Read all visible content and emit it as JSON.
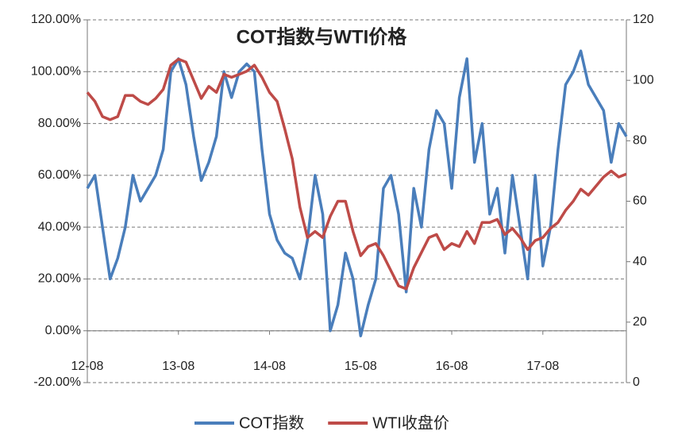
{
  "chart_data": {
    "type": "line",
    "title": "COT指数与WTI价格",
    "categories": [
      "12-08",
      null,
      null,
      null,
      null,
      null,
      null,
      null,
      null,
      null,
      null,
      null,
      "13-08",
      null,
      null,
      null,
      null,
      null,
      null,
      null,
      null,
      null,
      null,
      null,
      "14-08",
      null,
      null,
      null,
      null,
      null,
      null,
      null,
      null,
      null,
      null,
      null,
      "15-08",
      null,
      null,
      null,
      null,
      null,
      null,
      null,
      null,
      null,
      null,
      null,
      "16-08",
      null,
      null,
      null,
      null,
      null,
      null,
      null,
      null,
      null,
      null,
      null,
      "17-08",
      null,
      null,
      null,
      null,
      null,
      null,
      null,
      null,
      null,
      null,
      null
    ],
    "series": [
      {
        "name": "COT指数",
        "color": "#4a7ebb",
        "values": [
          55,
          60,
          40,
          20,
          28,
          40,
          60,
          50,
          55,
          60,
          70,
          100,
          105,
          95,
          75,
          58,
          65,
          75,
          100,
          90,
          100,
          103,
          100,
          70,
          45,
          35,
          30,
          28,
          20,
          35,
          60,
          45,
          0,
          10,
          30,
          20,
          -2,
          10,
          20,
          55,
          60,
          45,
          15,
          55,
          40,
          70,
          85,
          80,
          55,
          90,
          105,
          65,
          80,
          45,
          55,
          30,
          60,
          40,
          20,
          60,
          25,
          40,
          70,
          95,
          100,
          108,
          95,
          90,
          85,
          65,
          80,
          75
        ]
      },
      {
        "name": "WTI收盘价",
        "color": "#be4b48",
        "axis": "y2",
        "values": [
          96,
          93,
          88,
          87,
          88,
          95,
          95,
          93,
          92,
          94,
          97,
          105,
          107,
          106,
          100,
          94,
          98,
          96,
          102,
          101,
          102,
          103,
          105,
          101,
          96,
          93,
          84,
          74,
          58,
          48,
          50,
          48,
          55,
          60,
          60,
          50,
          42,
          45,
          46,
          42,
          37,
          32,
          31,
          38,
          43,
          48,
          49,
          44,
          46,
          45,
          50,
          46,
          53,
          53,
          54,
          49,
          51,
          48,
          44,
          47,
          48,
          51,
          53,
          57,
          60,
          64,
          62,
          65,
          68,
          70,
          68,
          69
        ]
      }
    ],
    "ylim": [
      -20,
      120
    ],
    "yticks": [
      {
        "value": -20,
        "label": "-20.00%"
      },
      {
        "value": 0,
        "label": "0.00%"
      },
      {
        "value": 20,
        "label": "20.00%"
      },
      {
        "value": 40,
        "label": "40.00%"
      },
      {
        "value": 60,
        "label": "60.00%"
      },
      {
        "value": 80,
        "label": "80.00%"
      },
      {
        "value": 100,
        "label": "100.00%"
      },
      {
        "value": 120,
        "label": "120.00%"
      }
    ],
    "y2lim": [
      0,
      120
    ],
    "y2ticks": [
      0,
      20,
      40,
      60,
      80,
      100,
      120
    ],
    "grid": true
  }
}
